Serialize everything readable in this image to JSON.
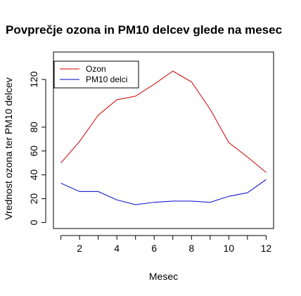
{
  "chart_data": {
    "type": "line",
    "title": "Povprečje ozona in PM10 delcev glede na mesec",
    "xlabel": "Mesec",
    "ylabel": "Vrednost ozona ter PM10 delcev",
    "xlim": [
      0.6,
      12.4
    ],
    "ylim": [
      -5,
      143
    ],
    "x": [
      1,
      2,
      3,
      4,
      5,
      6,
      7,
      8,
      9,
      10,
      11,
      12
    ],
    "xticks": [
      2,
      4,
      6,
      8,
      10,
      12
    ],
    "yticks": [
      0,
      20,
      40,
      60,
      80,
      120
    ],
    "grid": false,
    "legend_position": "top-left",
    "series": [
      {
        "name": "Ozon",
        "color": "#cc0000",
        "values": [
          50,
          68,
          90,
          103,
          106,
          116,
          127,
          118,
          95,
          67,
          55,
          42
        ]
      },
      {
        "name": "PM10 delci",
        "color": "#0000cc",
        "values": [
          33,
          26,
          26,
          19,
          15,
          17,
          18,
          18,
          17,
          22,
          25,
          36
        ]
      }
    ]
  }
}
